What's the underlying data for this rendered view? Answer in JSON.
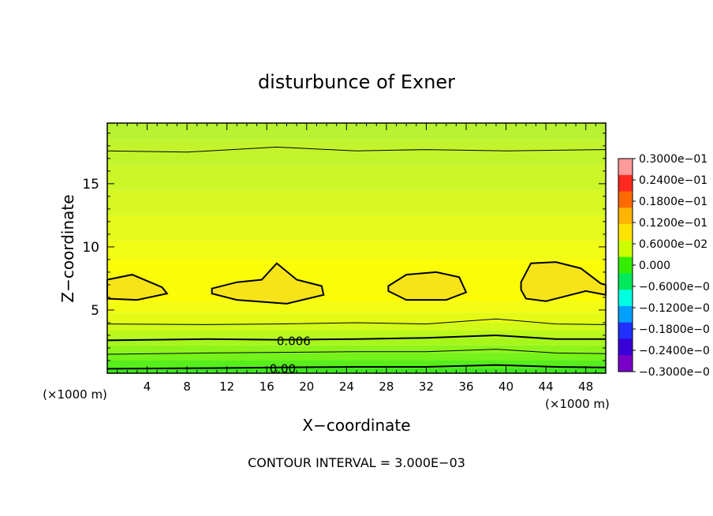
{
  "chart_data": {
    "type": "heatmap",
    "title": "disturbunce of Exner",
    "xlabel": "X−coordinate",
    "ylabel": "Z−coordinate",
    "x_unit_left": "(×1000 m)",
    "x_unit_right": "(×1000 m)",
    "xlim": [
      0,
      50
    ],
    "ylim": [
      0,
      19.8
    ],
    "x_ticks": [
      "4",
      "8",
      "12",
      "16",
      "20",
      "24",
      "28",
      "32",
      "36",
      "40",
      "44",
      "48"
    ],
    "x_tick_values": [
      4,
      8,
      12,
      16,
      20,
      24,
      28,
      32,
      36,
      40,
      44,
      48
    ],
    "y_ticks": [
      "5",
      "10",
      "15"
    ],
    "y_tick_values": [
      5,
      10,
      15
    ],
    "footer": "CONTOUR INTERVAL = 3.000E−03",
    "contour_interval": 0.003,
    "contour_labels": [
      {
        "text": "0.006",
        "x": 18.7,
        "z": 2.6
      },
      {
        "text": "0.00",
        "x": 17.6,
        "z": 0.4
      }
    ],
    "contour_lines": [
      {
        "level": 0.0,
        "x": [
          0,
          10,
          17,
          25,
          32,
          39,
          45,
          50
        ],
        "z": [
          0.35,
          0.4,
          0.45,
          0.5,
          0.5,
          0.65,
          0.5,
          0.45
        ]
      },
      {
        "level": 0.003,
        "x": [
          0,
          10,
          17,
          25,
          32,
          39,
          45,
          50
        ],
        "z": [
          1.5,
          1.6,
          1.65,
          1.7,
          1.7,
          1.9,
          1.6,
          1.55
        ]
      },
      {
        "level": 0.006,
        "x": [
          0,
          10,
          17,
          25,
          32,
          39,
          45,
          50
        ],
        "z": [
          2.6,
          2.7,
          2.65,
          2.7,
          2.8,
          3.0,
          2.7,
          2.7
        ]
      },
      {
        "level": 0.009,
        "x": [
          0,
          10,
          17,
          25,
          32,
          39,
          45,
          50
        ],
        "z": [
          3.9,
          3.85,
          3.9,
          4.0,
          3.9,
          4.3,
          3.9,
          3.85
        ]
      },
      {
        "level": 0.009,
        "x": [
          0,
          8,
          17,
          25,
          32,
          40,
          50
        ],
        "z": [
          17.6,
          17.5,
          17.9,
          17.6,
          17.7,
          17.6,
          17.7
        ]
      }
    ],
    "contour_closed": [
      {
        "level": 0.012,
        "x": [
          0,
          2.5,
          5.5,
          6,
          3,
          0
        ],
        "z": [
          7.4,
          7.8,
          6.8,
          6.3,
          5.8,
          5.9
        ]
      },
      {
        "level": 0.012,
        "x": [
          10.5,
          13,
          15.5,
          17,
          19,
          21.5,
          21.7,
          18,
          13,
          10.5
        ],
        "z": [
          6.7,
          7.2,
          7.4,
          8.7,
          7.4,
          6.9,
          6.2,
          5.5,
          5.8,
          6.3
        ]
      },
      {
        "level": 0.012,
        "x": [
          28.2,
          30,
          33,
          35.3,
          36,
          34,
          30,
          28.2
        ],
        "z": [
          6.9,
          7.8,
          8.0,
          7.6,
          6.4,
          5.8,
          5.8,
          6.5
        ]
      },
      {
        "level": 0.012,
        "x": [
          41.5,
          42.5,
          45,
          47.5,
          49.5,
          50,
          50,
          48,
          44,
          42,
          41.5
        ],
        "z": [
          7.2,
          8.7,
          8.8,
          8.3,
          7.1,
          7.0,
          6.2,
          6.5,
          5.7,
          5.9,
          6.6
        ]
      }
    ],
    "colorbar": {
      "min": -0.03,
      "max": 0.03,
      "labels": [
        "0.3000e−01",
        "0.2400e−01",
        "0.1800e−01",
        "0.1200e−01",
        "0.6000e−02",
        "0.000",
        "−0.6000e−0",
        "−0.1200e−0",
        "−0.1800e−0",
        "−0.2400e−0",
        "−0.3000e−0"
      ],
      "colors": [
        "#ff9a9a",
        "#ff2a1f",
        "#ff6a00",
        "#ffb400",
        "#ffe400",
        "#ccff00",
        "#33ee00",
        "#00e85c",
        "#00ffe0",
        "#00a0ff",
        "#2030ff",
        "#3a00d8",
        "#7a00c8"
      ]
    },
    "field_bands": [
      {
        "z0": 0.0,
        "z1": 0.4,
        "color": "#3ce81c"
      },
      {
        "z0": 0.4,
        "z1": 1.0,
        "color": "#56ee1c"
      },
      {
        "z0": 1.0,
        "z1": 1.6,
        "color": "#74f21a"
      },
      {
        "z0": 1.6,
        "z1": 2.2,
        "color": "#8ef41a"
      },
      {
        "z0": 2.2,
        "z1": 2.8,
        "color": "#a6f61a"
      },
      {
        "z0": 2.8,
        "z1": 3.4,
        "color": "#bcf81a"
      },
      {
        "z0": 3.4,
        "z1": 4.0,
        "color": "#d2fa18"
      },
      {
        "z0": 4.0,
        "z1": 4.8,
        "color": "#e4fb16"
      },
      {
        "z0": 4.8,
        "z1": 5.6,
        "color": "#f2fc12"
      },
      {
        "z0": 5.6,
        "z1": 9.0,
        "color": "#fafc08"
      },
      {
        "z0": 9.0,
        "z1": 10.5,
        "color": "#f0fc14"
      },
      {
        "z0": 10.5,
        "z1": 12.5,
        "color": "#e4fa1c"
      },
      {
        "z0": 12.5,
        "z1": 14.5,
        "color": "#d8f822"
      },
      {
        "z0": 14.5,
        "z1": 16.5,
        "color": "#ccf628"
      },
      {
        "z0": 16.5,
        "z1": 18.5,
        "color": "#c2f42c"
      },
      {
        "z0": 18.5,
        "z1": 19.8,
        "color": "#b8f230"
      }
    ],
    "max_fill_color": "#f7e418",
    "grid": false
  }
}
